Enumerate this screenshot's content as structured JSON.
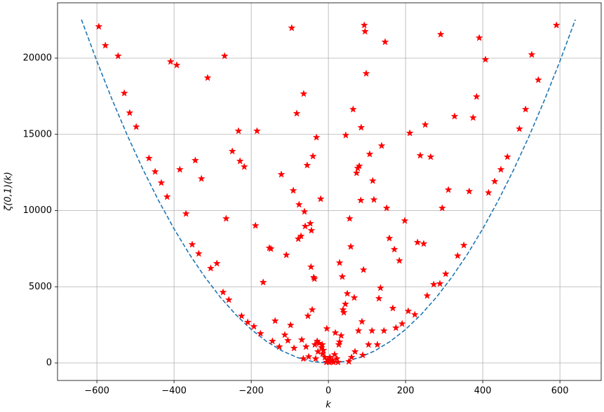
{
  "chart_data": {
    "type": "scatter",
    "xlabel": "k",
    "ylabel": "ζ(0,1)(k)",
    "xlim": [
      -702,
      707
    ],
    "ylim": [
      -1149,
      23632
    ],
    "xticks": [
      {
        "value": -600,
        "label": "−600"
      },
      {
        "value": -400,
        "label": "−400"
      },
      {
        "value": -200,
        "label": "−200"
      },
      0,
      200,
      400,
      600
    ],
    "yticks": [
      0,
      5000,
      10000,
      15000,
      20000
    ],
    "grid": true,
    "series": [
      {
        "type": "line",
        "color": "#1f77b4",
        "dashed": true,
        "x": [
          -640,
          -600,
          -560,
          -520,
          -480,
          -440,
          -400,
          -360,
          -320,
          -280,
          -240,
          -200,
          -160,
          -120,
          -80,
          -40,
          0,
          40,
          80,
          120,
          160,
          200,
          240,
          280,
          320,
          360,
          400,
          440,
          480,
          520,
          560,
          600,
          640
        ],
        "values": [
          22528,
          19800,
          17248,
          14872,
          12672,
          10648,
          8800,
          7128,
          5632,
          4312,
          3168,
          2200,
          1408,
          792,
          352,
          88,
          0,
          88,
          352,
          792,
          1408,
          2200,
          3168,
          4312,
          5632,
          7128,
          8800,
          10648,
          12672,
          14872,
          17248,
          19800,
          22528
        ]
      },
      {
        "type": "scatter",
        "color": "#ff0000",
        "marker": "star",
        "x": [
          -595,
          -578,
          -545,
          -529,
          -515,
          -498,
          -465,
          -449,
          -433,
          -418,
          -409,
          -393,
          -385,
          -369,
          -353,
          -345,
          -336,
          -329,
          -313,
          -305,
          -289,
          -273,
          -269,
          -265,
          -258,
          -249,
          -233,
          -229,
          -225,
          -218,
          -209,
          -193,
          -189,
          -185,
          -176,
          -169,
          -153,
          -149,
          -145,
          -138,
          -127,
          -122,
          -113,
          -109,
          -105,
          -98,
          -95,
          -91,
          -89,
          -82,
          -78,
          -76,
          -71,
          -69,
          -65,
          -64,
          -62,
          -60,
          -58,
          -55,
          -53,
          -51,
          -47,
          -45,
          -44,
          -42,
          -40,
          -38,
          -36,
          -35,
          -33,
          -31,
          -29,
          -27,
          -24,
          -20,
          -18,
          -16,
          -15,
          -13,
          -9,
          -5,
          -4,
          -2,
          2,
          4,
          7,
          11,
          13,
          16,
          18,
          22,
          25,
          27,
          29,
          29,
          33,
          36,
          38,
          40,
          44,
          45,
          49,
          53,
          55,
          58,
          60,
          64,
          67,
          69,
          73,
          76,
          78,
          80,
          84,
          85,
          87,
          89,
          91,
          93,
          95,
          98,
          104,
          107,
          113,
          115,
          118,
          127,
          131,
          135,
          138,
          144,
          147,
          151,
          158,
          167,
          171,
          175,
          184,
          191,
          198,
          207,
          211,
          224,
          231,
          238,
          247,
          251,
          256,
          265,
          273,
          289,
          291,
          295,
          304,
          311,
          327,
          335,
          351,
          365,
          375,
          384,
          391,
          407,
          415,
          431,
          447,
          464,
          495,
          511,
          527,
          544,
          591
        ],
        "values": [
          22070,
          20830,
          20140,
          17700,
          16410,
          15490,
          13430,
          12550,
          11820,
          10900,
          19770,
          19540,
          12690,
          9790,
          7770,
          13290,
          7170,
          12090,
          18710,
          6210,
          6530,
          4640,
          20140,
          9470,
          4140,
          13890,
          15220,
          13240,
          3080,
          12870,
          2670,
          2390,
          9010,
          15220,
          1930,
          5290,
          7540,
          7490,
          1430,
          2760,
          1060,
          12370,
          1840,
          7080,
          1470,
          2480,
          21980,
          11310,
          970,
          16370,
          8140,
          10390,
          8320,
          1520,
          280,
          17660,
          9930,
          8970,
          1060,
          12970,
          3080,
          410,
          9150,
          6300,
          8690,
          3490,
          13560,
          5610,
          5520,
          1200,
          280,
          14800,
          1430,
          740,
          1290,
          10760,
          1010,
          1200,
          600,
          830,
          370,
          50,
          2250,
          180,
          50,
          370,
          90,
          180,
          50,
          550,
          1980,
          280,
          50,
          1200,
          1380,
          6570,
          1790,
          5660,
          3490,
          3310,
          3860,
          14940,
          4550,
          90,
          9470,
          7630,
          370,
          16640,
          4280,
          740,
          12460,
          12780,
          2110,
          12920,
          10670,
          15450,
          2710,
          510,
          6110,
          22160,
          21750,
          18990,
          1200,
          13700,
          2110,
          11950,
          10710,
          1200,
          4230,
          4920,
          14250,
          2110,
          21060,
          10160,
          8180,
          3590,
          7450,
          2300,
          6710,
          2570,
          9330,
          3400,
          15080,
          3170,
          7910,
          13610,
          7820,
          15630,
          4410,
          13520,
          5150,
          5200,
          21560,
          10160,
          5840,
          11360,
          16180,
          7030,
          7720,
          11260,
          16090,
          17470,
          21330,
          19910,
          11170,
          11910,
          12690,
          13520,
          15360,
          16640,
          20230,
          18570,
          22160
        ]
      }
    ]
  }
}
